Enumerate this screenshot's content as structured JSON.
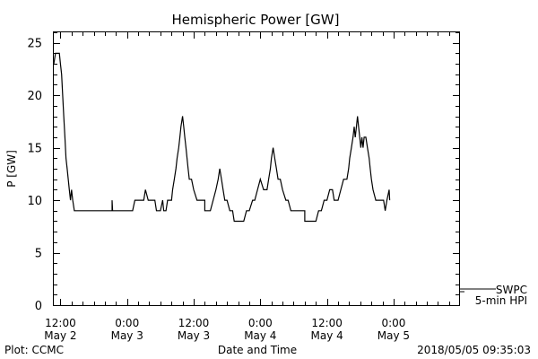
{
  "chart_data": {
    "type": "line",
    "title": "Hemispheric Power [GW]",
    "ylabel": "P [GW]",
    "xlabel": "Date and Time",
    "ylim": [
      0,
      26
    ],
    "yticks": [
      0,
      5,
      10,
      15,
      20,
      25
    ],
    "xlim_hours": [
      -1.2,
      71.8
    ],
    "xticks": [
      {
        "hour": 0,
        "time": "12:00",
        "date": "May 2"
      },
      {
        "hour": 12,
        "time": "0:00",
        "date": "May 3"
      },
      {
        "hour": 24,
        "time": "12:00",
        "date": "May 3"
      },
      {
        "hour": 36,
        "time": "0:00",
        "date": "May 4"
      },
      {
        "hour": 48,
        "time": "12:00",
        "date": "May 4"
      },
      {
        "hour": 60,
        "time": "0:00",
        "date": "May 5"
      }
    ],
    "series": [
      {
        "name": "5-min HPI",
        "color": "#000000",
        "points": [
          [
            -1.2,
            23
          ],
          [
            -0.9,
            24
          ],
          [
            -0.2,
            24
          ],
          [
            0,
            23
          ],
          [
            0.2,
            22
          ],
          [
            0.4,
            20
          ],
          [
            0.6,
            18
          ],
          [
            0.8,
            16
          ],
          [
            1.0,
            14
          ],
          [
            1.2,
            13
          ],
          [
            1.4,
            12
          ],
          [
            1.6,
            11
          ],
          [
            1.8,
            10
          ],
          [
            2.0,
            11
          ],
          [
            2.2,
            10
          ],
          [
            2.5,
            9
          ],
          [
            3,
            9
          ],
          [
            6,
            9
          ],
          [
            8,
            9
          ],
          [
            9.3,
            9
          ],
          [
            9.3,
            10
          ],
          [
            9.4,
            9
          ],
          [
            11,
            9
          ],
          [
            12,
            9
          ],
          [
            13,
            9
          ],
          [
            13.4,
            10
          ],
          [
            14,
            10
          ],
          [
            15,
            10
          ],
          [
            15.3,
            11
          ],
          [
            15.8,
            10
          ],
          [
            16,
            10
          ],
          [
            17,
            10
          ],
          [
            17.3,
            9
          ],
          [
            18,
            9
          ],
          [
            18.4,
            10
          ],
          [
            18.6,
            9
          ],
          [
            19,
            9
          ],
          [
            19.3,
            10
          ],
          [
            20,
            10
          ],
          [
            20.2,
            11
          ],
          [
            20.5,
            12
          ],
          [
            20.8,
            13
          ],
          [
            21,
            14
          ],
          [
            21.3,
            15
          ],
          [
            21.5,
            16
          ],
          [
            21.7,
            17
          ],
          [
            22,
            18
          ],
          [
            22.2,
            17
          ],
          [
            22.4,
            16
          ],
          [
            22.6,
            15
          ],
          [
            22.8,
            14
          ],
          [
            23,
            13
          ],
          [
            23.2,
            12
          ],
          [
            23.6,
            12
          ],
          [
            24,
            11
          ],
          [
            24.6,
            10
          ],
          [
            25,
            10
          ],
          [
            26,
            10
          ],
          [
            26,
            9
          ],
          [
            27,
            9
          ],
          [
            27.5,
            10
          ],
          [
            28,
            11
          ],
          [
            28.4,
            12
          ],
          [
            28.7,
            13
          ],
          [
            29,
            12
          ],
          [
            29.3,
            11
          ],
          [
            29.6,
            10
          ],
          [
            30,
            10
          ],
          [
            30.5,
            9
          ],
          [
            31,
            9
          ],
          [
            31.3,
            8
          ],
          [
            33,
            8
          ],
          [
            33.5,
            9
          ],
          [
            34,
            9
          ],
          [
            34.6,
            10
          ],
          [
            35,
            10
          ],
          [
            35.5,
            11
          ],
          [
            36,
            12
          ],
          [
            36.6,
            11
          ],
          [
            37.2,
            11
          ],
          [
            37.5,
            12
          ],
          [
            37.8,
            13
          ],
          [
            38,
            14
          ],
          [
            38.3,
            15
          ],
          [
            38.6,
            14
          ],
          [
            38.9,
            13
          ],
          [
            39.2,
            12
          ],
          [
            39.6,
            12
          ],
          [
            40,
            11
          ],
          [
            40.6,
            10
          ],
          [
            41,
            10
          ],
          [
            41.5,
            9
          ],
          [
            44,
            9
          ],
          [
            44,
            8
          ],
          [
            46,
            8
          ],
          [
            46.5,
            9
          ],
          [
            47,
            9
          ],
          [
            47.5,
            10
          ],
          [
            48,
            10
          ],
          [
            48.5,
            11
          ],
          [
            49,
            11
          ],
          [
            49.3,
            10
          ],
          [
            50,
            10
          ],
          [
            50.5,
            11
          ],
          [
            51,
            12
          ],
          [
            51.6,
            12
          ],
          [
            51.9,
            13
          ],
          [
            52.1,
            14
          ],
          [
            52.4,
            15
          ],
          [
            52.7,
            16
          ],
          [
            52.9,
            17
          ],
          [
            53.1,
            16
          ],
          [
            53.3,
            17
          ],
          [
            53.5,
            18
          ],
          [
            53.7,
            17
          ],
          [
            53.9,
            16
          ],
          [
            54.1,
            15
          ],
          [
            54.3,
            16
          ],
          [
            54.5,
            15
          ],
          [
            54.7,
            16
          ],
          [
            55,
            16
          ],
          [
            55.3,
            15
          ],
          [
            55.6,
            14
          ],
          [
            55.8,
            13
          ],
          [
            56,
            12
          ],
          [
            56.3,
            11
          ],
          [
            56.8,
            10
          ],
          [
            57.5,
            10
          ],
          [
            58.2,
            10
          ],
          [
            58.5,
            9
          ],
          [
            58.8,
            10
          ],
          [
            59.2,
            11
          ],
          [
            59.3,
            10
          ]
        ]
      }
    ],
    "legend": [
      {
        "label": "SWPC"
      },
      {
        "label": "5-min HPI"
      }
    ]
  },
  "footer": {
    "plot_credit": "Plot: CCMC",
    "timestamp": "2018/05/05 09:35:03"
  }
}
